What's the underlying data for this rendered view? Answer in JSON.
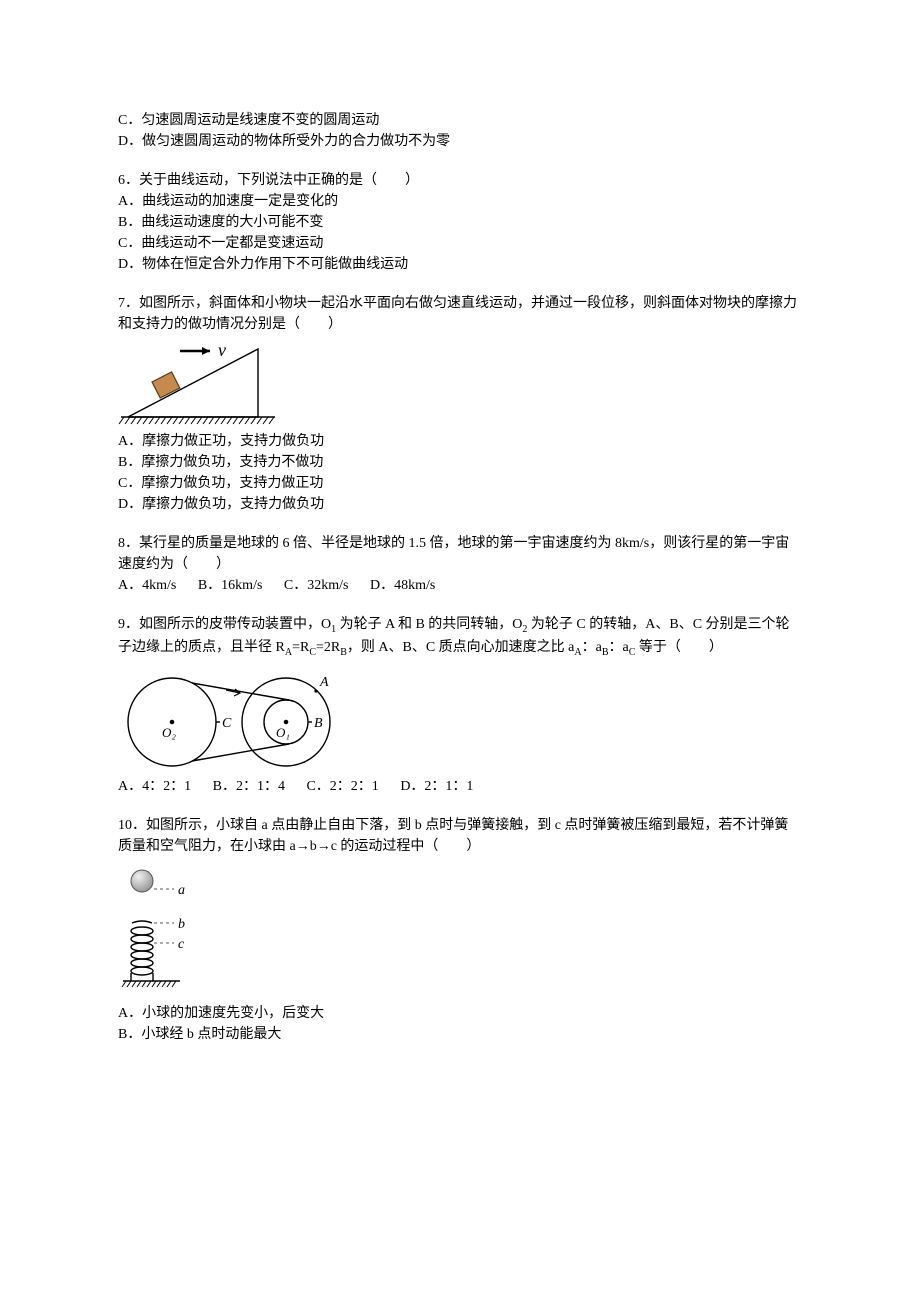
{
  "q5_partial": {
    "optC": "C．匀速圆周运动是线速度不变的圆周运动",
    "optD": "D．做匀速圆周运动的物体所受外力的合力做功不为零"
  },
  "q6": {
    "stem": "6．关于曲线运动，下列说法中正确的是（　　）",
    "optA": "A．曲线运动的加速度一定是变化的",
    "optB": "B．曲线运动速度的大小可能不变",
    "optC": "C．曲线运动不一定都是变速运动",
    "optD": "D．物体在恒定合外力作用下不可能做曲线运动"
  },
  "q7": {
    "stem": "7．如图所示，斜面体和小物块一起沿水平面向右做匀速直线运动，并通过一段位移，则斜面体对物块的摩擦力和支持力的做功情况分别是（　　）",
    "optA": "A．摩擦力做正功，支持力做负功",
    "optB": "B．摩擦力做负功，支持力不做功",
    "optC": "C．摩擦力做负功，支持力做正功",
    "optD": "D．摩擦力做负功，支持力做负功",
    "fig": {
      "v_label": "v",
      "arrow_color": "#000000",
      "block_fill": "#c48a4e",
      "block_border": "#5a3a1c",
      "triangle_border": "#000000",
      "ground_color": "#000000"
    }
  },
  "q8": {
    "stem": "8．某行星的质量是地球的 6 倍、半径是地球的 1.5 倍，地球的第一宇宙速度约为 8km/s，则该行星的第一宇宙速度约为（　　）",
    "optA": "A．4km/s",
    "optB": "B．16km/s",
    "optC": "C．32km/s",
    "optD": "D．48km/s"
  },
  "q9": {
    "stem_p1": "9．如图所示的皮带传动装置中，O",
    "stem_p2": " 为轮子 A 和 B 的共同转轴，O",
    "stem_p3": " 为轮子 C 的转轴，A、B、C 分别是三个轮子边缘上的质点，且半径 R",
    "stem_p4": "=R",
    "stem_p5": "=2R",
    "stem_p6": "，则 A、B、C 质点向心加速度之比 a",
    "stem_p7": "：a",
    "stem_p8": "：a",
    "stem_p9": " 等于（　　）",
    "sub1": "1",
    "sub2": "2",
    "subA": "A",
    "subB": "B",
    "subC": "C",
    "fig": {
      "labelA": "A",
      "labelB": "B",
      "labelC": "C",
      "labelO1": "O₁",
      "labelO2": "O₂",
      "stroke": "#000000",
      "fill": "#ffffff"
    },
    "optA": "A．4：2：1",
    "optB": "B．2：1：4",
    "optC": "C．2：2：1",
    "optD": "D．2：1：1"
  },
  "q10": {
    "stem": "10．如图所示，小球自 a 点由静止自由下落，到 b 点时与弹簧接触，到 c 点时弹簧被压缩到最短，若不计弹簧质量和空气阻力，在小球由 a→b→c 的运动过程中（　　）",
    "fig": {
      "label_a": "a",
      "label_b": "b",
      "label_c": "c",
      "ball_fill": "#bdbdbd",
      "ball_stroke": "#555555",
      "spring_color": "#000000",
      "ground_color": "#000000",
      "dash_color": "#555555"
    },
    "optA": "A．小球的加速度先变小，后变大",
    "optB": "B．小球经 b 点时动能最大"
  }
}
